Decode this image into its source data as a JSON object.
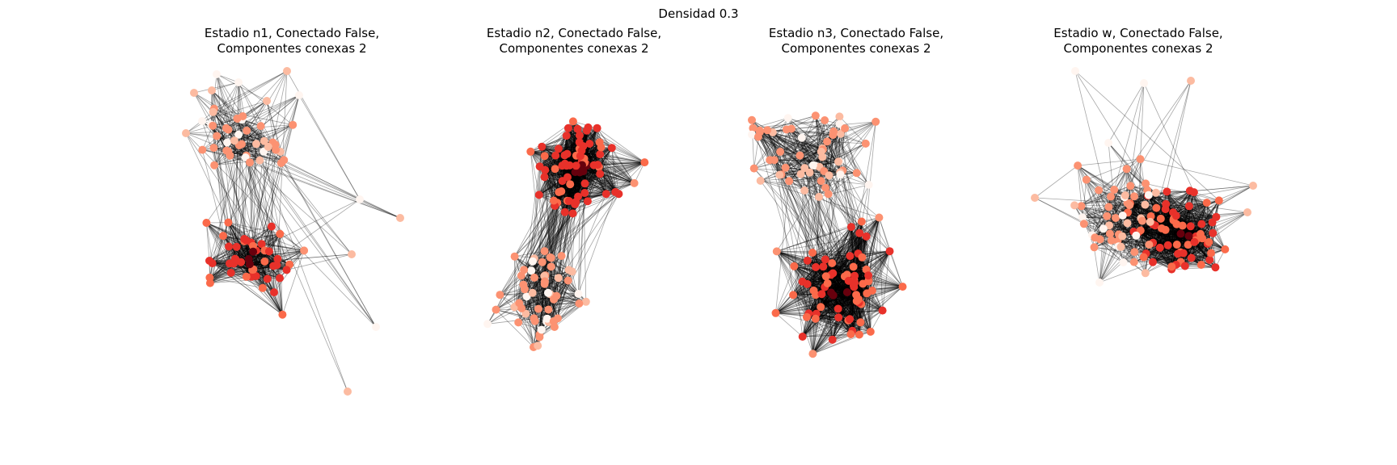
{
  "figure": {
    "suptitle": "Densidad 0.3",
    "panels": [
      {
        "title_line1": "Estadio n1, Conectado False,",
        "title_line2": "Componentes conexas 2",
        "node_count": 100,
        "outliers": 14
      },
      {
        "title_line1": "Estadio n2, Conectado False,",
        "title_line2": "Componentes conexas 2",
        "node_count": 130,
        "outliers": 0
      },
      {
        "title_line1": "Estadio n3, Conectado False,",
        "title_line2": "Componentes conexas 2",
        "node_count": 130,
        "outliers": 0
      },
      {
        "title_line1": "Estadio w, Conectado False,",
        "title_line2": "Componentes conexas 2",
        "node_count": 120,
        "outliers": 6
      }
    ]
  },
  "style": {
    "edge_color": "#000000",
    "colormap": "Reds",
    "palette": [
      "#fff5f0",
      "#fcbba1",
      "#fc9272",
      "#fb6a4a",
      "#e8312a",
      "#d9201e",
      "#67000d"
    ]
  }
}
